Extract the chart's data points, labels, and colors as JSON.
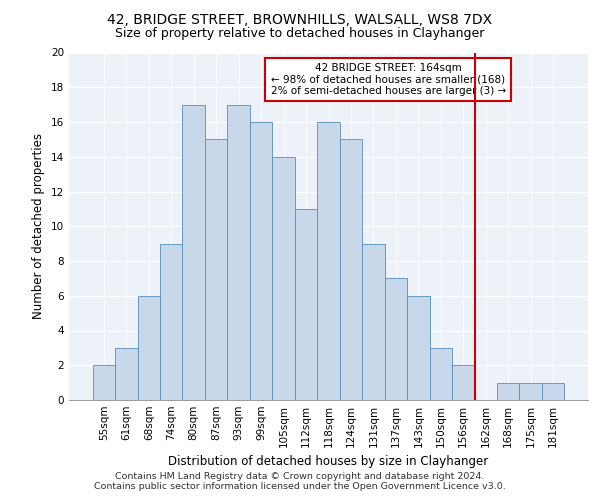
{
  "title1": "42, BRIDGE STREET, BROWNHILLS, WALSALL, WS8 7DX",
  "title2": "Size of property relative to detached houses in Clayhanger",
  "xlabel": "Distribution of detached houses by size in Clayhanger",
  "ylabel": "Number of detached properties",
  "categories": [
    "55sqm",
    "61sqm",
    "68sqm",
    "74sqm",
    "80sqm",
    "87sqm",
    "93sqm",
    "99sqm",
    "105sqm",
    "112sqm",
    "118sqm",
    "124sqm",
    "131sqm",
    "137sqm",
    "143sqm",
    "150sqm",
    "156sqm",
    "162sqm",
    "168sqm",
    "175sqm",
    "181sqm"
  ],
  "values": [
    2,
    3,
    6,
    9,
    17,
    15,
    17,
    16,
    14,
    11,
    16,
    15,
    9,
    7,
    6,
    3,
    2,
    0,
    1,
    1,
    1
  ],
  "bar_color": "#c8d8ea",
  "bar_edge_color": "#5590bb",
  "annotation_text": "42 BRIDGE STREET: 164sqm\n← 98% of detached houses are smaller (168)\n2% of semi-detached houses are larger (3) →",
  "annotation_box_color": "#ffffff",
  "annotation_box_edge_color": "#cc0000",
  "redline_color": "#cc0000",
  "footer1": "Contains HM Land Registry data © Crown copyright and database right 2024.",
  "footer2": "Contains public sector information licensed under the Open Government Licence v3.0.",
  "ylim": [
    0,
    20
  ],
  "yticks": [
    0,
    2,
    4,
    6,
    8,
    10,
    12,
    14,
    16,
    18,
    20
  ],
  "bg_color": "#edf2f9",
  "grid_color": "#ffffff",
  "title1_fontsize": 10,
  "title2_fontsize": 9,
  "xlabel_fontsize": 8.5,
  "ylabel_fontsize": 8.5,
  "tick_fontsize": 7.5,
  "annotation_fontsize": 7.5,
  "footer_fontsize": 6.8
}
